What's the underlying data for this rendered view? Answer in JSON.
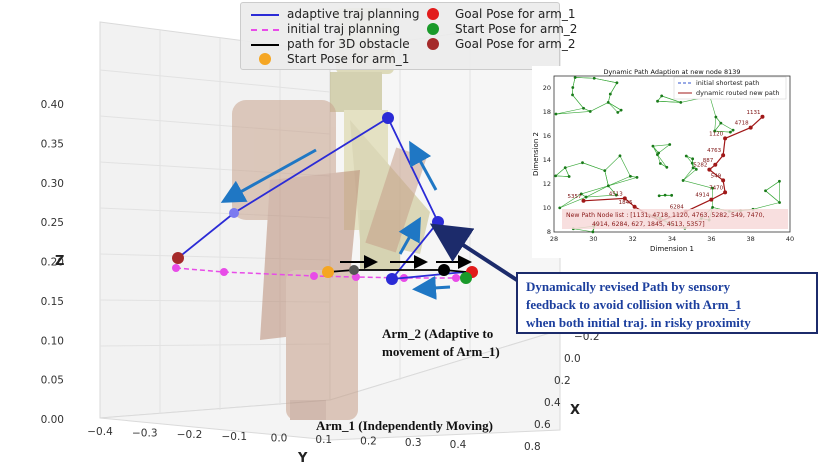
{
  "legend": {
    "items": [
      {
        "label": "adaptive traj planning",
        "kind": "line",
        "color": "#2b2bd6",
        "dash": false
      },
      {
        "label": "initial traj planning",
        "kind": "line",
        "color": "#e84ce8",
        "dash": true
      },
      {
        "label": "path for 3D obstacle",
        "kind": "line",
        "color": "#000000",
        "dash": false
      },
      {
        "label": "Start Pose for arm_1",
        "kind": "dot",
        "color": "#f5a623"
      },
      {
        "label": "Goal Pose for arm_1",
        "kind": "dot",
        "color": "#e21b1b"
      },
      {
        "label": "Start Pose for arm_2",
        "kind": "dot",
        "color": "#1a9a2a"
      },
      {
        "label": "Goal Pose for arm_2",
        "kind": "dot",
        "color": "#a52a2a"
      }
    ]
  },
  "axes": {
    "z_label": "Z",
    "x_label": "X",
    "y_label": "Y",
    "z_ticks": [
      "0.00",
      "0.05",
      "0.10",
      "0.15",
      "0.20",
      "0.25",
      "0.30",
      "0.35",
      "0.40"
    ],
    "y_ticks": [
      "−0.4",
      "−0.3",
      "−0.2",
      "−0.1",
      "0.0",
      "0.1",
      "0.2",
      "0.3",
      "0.4"
    ],
    "x_ticks": [
      "−0.2",
      "0.0",
      "0.2",
      "0.4",
      "0.6",
      "0.8"
    ]
  },
  "annotations": {
    "arm2_line1": "Arm_2 (Adaptive to",
    "arm2_line2": "movement of Arm_1)",
    "arm1": "Arm_1 (Independently Moving)",
    "callout_line1": "Dynamically revised Path by sensory",
    "callout_line2": "feedback to avoid collision with Arm_1",
    "callout_line3": "when both initial traj. in risky proximity"
  },
  "inset": {
    "title": "Dynamic Path Adaption at new node 8139",
    "xlabel": "Dimension 1",
    "ylabel": "Dimension 2",
    "xlim": [
      28,
      40
    ],
    "ylim": [
      8,
      21
    ],
    "x_ticks": [
      "28",
      "30",
      "32",
      "34",
      "36",
      "38",
      "40"
    ],
    "y_ticks": [
      "8",
      "10",
      "12",
      "14",
      "16",
      "18",
      "20"
    ],
    "legend_initial": "initial shortest path",
    "legend_dynamic": "dynamic routed new path",
    "node_list_text": "New Path Node list : [1131, 4718, 1120, 4763, 5282, 549, 7470,",
    "node_list_text2": "4914, 6284, 627, 1845, 4513, 5357]",
    "node_labels": [
      {
        "id": "1131",
        "x": 38.6,
        "y": 17.6
      },
      {
        "id": "4718",
        "x": 38.0,
        "y": 16.7
      },
      {
        "id": "1120",
        "x": 36.7,
        "y": 15.8
      },
      {
        "id": "4763",
        "x": 36.6,
        "y": 14.4
      },
      {
        "id": "887",
        "x": 36.2,
        "y": 13.6
      },
      {
        "id": "5282",
        "x": 35.9,
        "y": 13.2
      },
      {
        "id": "549",
        "x": 36.6,
        "y": 12.3
      },
      {
        "id": "7470",
        "x": 36.7,
        "y": 11.3
      },
      {
        "id": "4914",
        "x": 36.0,
        "y": 10.7
      },
      {
        "id": "6284",
        "x": 34.7,
        "y": 9.7
      },
      {
        "id": "627",
        "x": 33.4,
        "y": 8.9
      },
      {
        "id": "1845",
        "x": 32.1,
        "y": 10.1
      },
      {
        "id": "4513",
        "x": 31.6,
        "y": 10.8
      },
      {
        "id": "5357",
        "x": 29.5,
        "y": 10.6
      }
    ]
  },
  "colors": {
    "adaptive": "#2b2bd6",
    "initial": "#e84ce8",
    "obstacle": "#000000",
    "arrow_blue": "#1f77c4",
    "route": "#a01818",
    "graph_edge": "#3aa83a",
    "callout_text": "#1c3f9e"
  }
}
